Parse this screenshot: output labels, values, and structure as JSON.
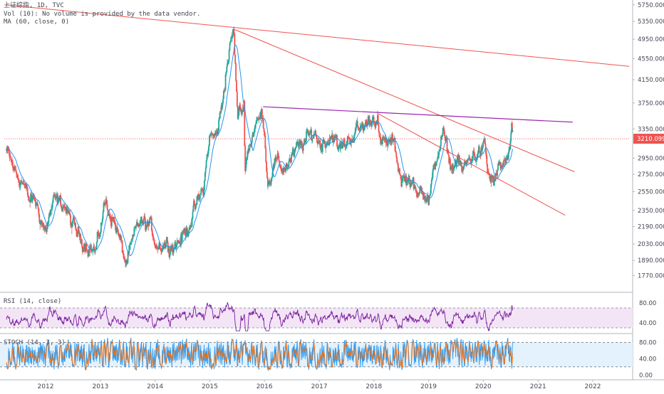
{
  "header": {
    "symbol_line": "上证综指, 1D, TVC",
    "volume_line": "Vol (10): No volume is provided by the data vendor.",
    "ma_line": "MA (60, close, 0)"
  },
  "panes": {
    "rsi_label": "RSI (14, close)",
    "stoch_label": "STOCH (14, 3, 3)"
  },
  "colors": {
    "background": "#ffffff",
    "candle_up": "#26a69a",
    "candle_down": "#ef5350",
    "ma_line": "#2196f3",
    "trendline_red": "#ef5350",
    "trendline_purple": "#9c27b0",
    "rsi_line": "#7b1fa2",
    "rsi_band": "#f3e5f5",
    "stoch_k": "#2196f3",
    "stoch_d": "#ff6d00",
    "stoch_band": "#e3f2fd",
    "price_label_bg": "#ef5350",
    "axis_text": "#434651",
    "grid": "#f0f3fa"
  },
  "chart_data": [
    {
      "type": "candlestick",
      "title": "上证综指, 1D, TVC",
      "x_axis": {
        "type": "date",
        "ticks": [
          "2012",
          "2013",
          "2014",
          "2015",
          "2016",
          "2017",
          "2018",
          "2019",
          "2020",
          "2021",
          "2022"
        ],
        "range": [
          "2011-04",
          "2022-09"
        ]
      },
      "y_axis": {
        "scale": "log",
        "range": [
          1650,
          5800
        ],
        "ticks": [
          "5750.000",
          "5350.000",
          "4950.000",
          "4550.000",
          "4150.000",
          "3750.000",
          "3350.000",
          "2950.000",
          "2750.000",
          "2550.000",
          "2350.000",
          "2190.000",
          "2030.000",
          "1890.000",
          "1770.000"
        ],
        "last_price_label": "3210.099"
      },
      "close_path": [
        [
          "2011-04-15",
          3050
        ],
        [
          "2011-06-20",
          2760
        ],
        [
          "2011-08-10",
          2640
        ],
        [
          "2011-09-15",
          2450
        ],
        [
          "2011-10-25",
          2460
        ],
        [
          "2011-12-28",
          2140
        ],
        [
          "2012-03-01",
          2450
        ],
        [
          "2012-05-05",
          2410
        ],
        [
          "2012-07-15",
          2160
        ],
        [
          "2012-09-15",
          2050
        ],
        [
          "2012-12-03",
          1960
        ],
        [
          "2013-02-05",
          2440
        ],
        [
          "2013-04-15",
          2200
        ],
        [
          "2013-06-25",
          1860
        ],
        [
          "2013-09-15",
          2230
        ],
        [
          "2013-11-25",
          2200
        ],
        [
          "2014-01-20",
          2020
        ],
        [
          "2014-03-15",
          2040
        ],
        [
          "2014-05-20",
          2020
        ],
        [
          "2014-07-25",
          2130
        ],
        [
          "2014-09-15",
          2320
        ],
        [
          "2014-11-25",
          2600
        ],
        [
          "2014-12-31",
          3230
        ],
        [
          "2015-02-15",
          3250
        ],
        [
          "2015-03-25",
          3700
        ],
        [
          "2015-04-25",
          4400
        ],
        [
          "2015-06-12",
          5170
        ],
        [
          "2015-07-08",
          3550
        ],
        [
          "2015-08-20",
          3700
        ],
        [
          "2015-08-27",
          2900
        ],
        [
          "2015-10-30",
          3380
        ],
        [
          "2015-12-25",
          3600
        ],
        [
          "2016-01-27",
          2650
        ],
        [
          "2016-03-15",
          2900
        ],
        [
          "2016-05-15",
          2820
        ],
        [
          "2016-08-15",
          3080
        ],
        [
          "2016-11-29",
          3300
        ],
        [
          "2017-01-15",
          3130
        ],
        [
          "2017-04-10",
          3280
        ],
        [
          "2017-05-10",
          3050
        ],
        [
          "2017-08-15",
          3270
        ],
        [
          "2017-11-15",
          3440
        ],
        [
          "2018-01-29",
          3560
        ],
        [
          "2018-02-09",
          3130
        ],
        [
          "2018-05-15",
          3160
        ],
        [
          "2018-07-05",
          2700
        ],
        [
          "2018-09-15",
          2680
        ],
        [
          "2018-10-19",
          2450
        ],
        [
          "2018-11-15",
          2650
        ],
        [
          "2019-01-04",
          2440
        ],
        [
          "2019-03-01",
          2990
        ],
        [
          "2019-04-08",
          3280
        ],
        [
          "2019-06-06",
          2820
        ],
        [
          "2019-07-15",
          2930
        ],
        [
          "2019-08-15",
          2780
        ],
        [
          "2019-10-15",
          2980
        ],
        [
          "2019-12-31",
          3050
        ],
        [
          "2020-01-15",
          3100
        ],
        [
          "2020-02-03",
          2750
        ],
        [
          "2020-03-20",
          2650
        ],
        [
          "2020-04-15",
          2820
        ],
        [
          "2020-06-01",
          2900
        ],
        [
          "2020-06-30",
          2990
        ],
        [
          "2020-07-09",
          3450
        ],
        [
          "2020-07-15",
          3210
        ]
      ],
      "ma_period": 60,
      "trendlines": [
        {
          "color": "red",
          "from": [
            "2011-04-01",
            5750
          ],
          "to": [
            "2022-09-01",
            4400
          ]
        },
        {
          "color": "red",
          "from": [
            "2015-06-12",
            5170
          ],
          "to": [
            "2021-09-01",
            2780
          ]
        },
        {
          "color": "red",
          "from": [
            "2018-01-29",
            3580
          ],
          "to": [
            "2021-07-01",
            2300
          ]
        },
        {
          "color": "purple",
          "from": [
            "2015-12-23",
            3690
          ],
          "to": [
            "2021-08-20",
            3450
          ]
        },
        {
          "color": "red",
          "style": "dotted",
          "from": [
            "2011-04-01",
            3210
          ],
          "to": [
            "2022-09-01",
            3210
          ]
        }
      ]
    },
    {
      "type": "line",
      "title": "RSI (14, close)",
      "y_axis": {
        "range": [
          20,
          100
        ],
        "ticks": [
          "80.00",
          "40.00"
        ]
      },
      "band": [
        30,
        70
      ]
    },
    {
      "type": "line",
      "title": "STOCH (14, 3, 3)",
      "y_axis": {
        "range": [
          -10,
          100
        ],
        "ticks": [
          "80.00",
          "40.00",
          "0.00"
        ]
      },
      "band": [
        20,
        80
      ]
    }
  ]
}
